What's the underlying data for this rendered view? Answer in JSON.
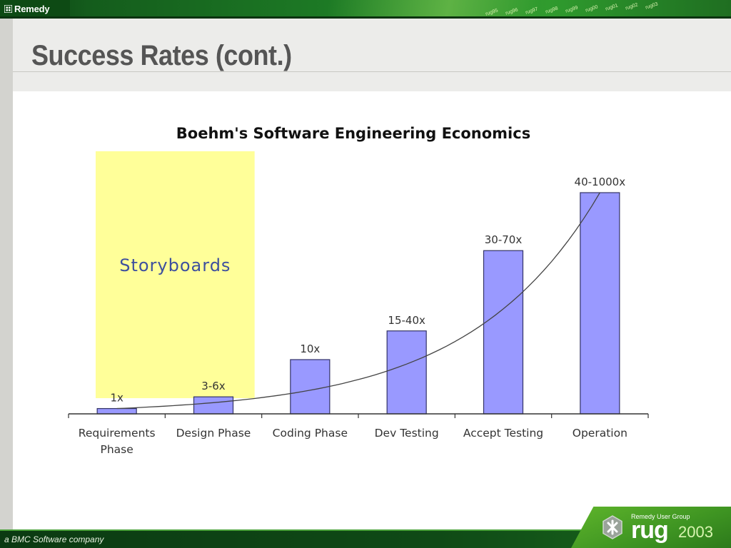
{
  "header": {
    "logo_text": "Remedy",
    "years": [
      "rug95",
      "rug96",
      "rug97",
      "rug98",
      "rug99",
      "rug00",
      "rug01",
      "rug02",
      "rug03"
    ]
  },
  "slide": {
    "title": "Success Rates (cont.)"
  },
  "footer": {
    "company": "a BMC Software company",
    "badge_group": "Remedy User Group",
    "badge_word": "rug",
    "badge_year": "2003"
  },
  "chart_data": {
    "type": "bar",
    "title": "Boehm's Software Engineering Economics",
    "categories": [
      "Requirements Phase",
      "Design Phase",
      "Coding Phase",
      "Dev Testing",
      "Accept Testing",
      "Operation"
    ],
    "category_lines": [
      [
        "Requirements",
        "Phase"
      ],
      [
        "Design Phase"
      ],
      [
        "Coding Phase"
      ],
      [
        "Dev Testing"
      ],
      [
        "Accept Testing"
      ],
      [
        "Operation"
      ]
    ],
    "data_labels": [
      "1x",
      "3-6x",
      "10x",
      "15-40x",
      "30-70x",
      "40-1000x"
    ],
    "values": [
      1,
      3.2,
      10.2,
      15.6,
      30.7,
      41.6
    ],
    "ylim": [
      0,
      41.6
    ],
    "trendline": "exponential",
    "highlight": {
      "label": "Storyboards",
      "color": "#ffff99",
      "span": [
        "Requirements Phase",
        "Design Phase"
      ]
    },
    "colors": {
      "bar": "#9999ff",
      "bar_stroke": "#333366",
      "trend": "#444444",
      "highlight_text": "#3d4f9e"
    }
  }
}
